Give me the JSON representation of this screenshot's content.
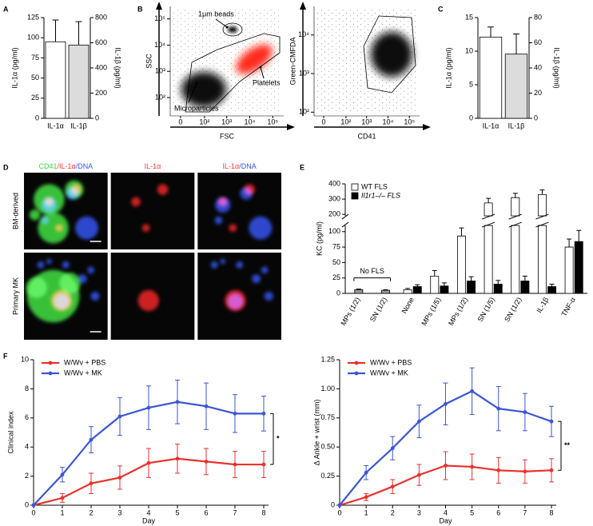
{
  "chart_data": [
    {
      "type": "bar",
      "panel": "A",
      "ylabel": "IL-1α (pg/ml)",
      "y2label": "IL-1β (pg/ml)",
      "categories": [
        "IL-1α",
        "IL-1β"
      ],
      "series": [
        {
          "color": "#ffffff",
          "values": [
            95,
            null
          ],
          "errors": [
            27,
            null
          ]
        },
        {
          "color": "#dcdcdc",
          "axis": "y2",
          "values": [
            null,
            582
          ],
          "errors": [
            null,
            186
          ]
        }
      ],
      "ylim": [
        0,
        125
      ],
      "yticks": [
        0,
        25,
        50,
        75,
        100,
        125
      ],
      "y2lim": [
        0,
        800
      ],
      "y2ticks": [
        0,
        200,
        400,
        600,
        800
      ]
    },
    {
      "type": "scatter",
      "panel": "B",
      "xlabel": "FSC",
      "ylabel": "SSC",
      "xscale": "symlog",
      "yscale": "log",
      "xlim": [
        -18,
        300000
      ],
      "ylim": [
        20,
        300000
      ],
      "xticks": [
        0,
        {
          "value": 100,
          "label": "10²"
        },
        {
          "value": 1000,
          "label": "10³"
        },
        {
          "value": 10000,
          "label": "10⁴"
        },
        {
          "value": 100000,
          "label": "10⁵"
        }
      ],
      "yticks": [
        {
          "value": 100,
          "label": "10²"
        },
        {
          "value": 1000,
          "label": "10³"
        },
        {
          "value": 10000,
          "label": "10⁴"
        },
        {
          "value": 100000,
          "label": "10⁵"
        }
      ],
      "annotations": [
        "1μm beads",
        "Platelets",
        "Microparticles"
      ]
    },
    {
      "type": "scatter",
      "xlabel": "CD41",
      "ylabel": "Green-CMFDA",
      "xscale": "symlog",
      "yscale": "log",
      "xlim": [
        -18,
        300000
      ],
      "ylim": [
        80,
        55000
      ],
      "xticks": [
        0,
        {
          "value": 100,
          "label": "10²"
        },
        {
          "value": 1000,
          "label": "10³"
        },
        {
          "value": 10000,
          "label": "10⁴"
        },
        {
          "value": 100000,
          "label": "10⁵"
        }
      ],
      "yticks": [
        {
          "value": 100,
          "label": "10²"
        },
        {
          "value": 1000,
          "label": "10³"
        },
        {
          "value": 10000,
          "label": "10⁴"
        }
      ]
    },
    {
      "type": "bar",
      "panel": "C",
      "ylabel": "IL-1α (pg/ml)",
      "y2label": "IL-1β (pg/ml)",
      "categories": [
        "IL-1α",
        "IL-1β"
      ],
      "series": [
        {
          "color": "#ffffff",
          "values": [
            12.1,
            null
          ],
          "errors": [
            1.5,
            null
          ]
        },
        {
          "color": "#dcdcdc",
          "axis": "y2",
          "values": [
            null,
            51
          ],
          "errors": [
            null,
            16
          ]
        }
      ],
      "ylim": [
        0,
        15
      ],
      "yticks": [
        0,
        5,
        10,
        15
      ],
      "y2lim": [
        0,
        80
      ],
      "y2ticks": [
        0,
        20,
        40,
        60,
        80
      ]
    },
    {
      "type": "image",
      "panel": "D",
      "column_titles": [
        [
          {
            "text": "CD41",
            "color": "#33dd33"
          },
          {
            "text": "/IL-1α",
            "color": "#ff3333"
          },
          {
            "text": "/DNA",
            "color": "#3355ff"
          }
        ],
        [
          {
            "text": "IL-1α",
            "color": "#ff3333"
          }
        ],
        [
          {
            "text": "IL-1α",
            "color": "#ff3333"
          },
          {
            "text": "/DNA",
            "color": "#3355ff"
          }
        ]
      ],
      "row_titles": [
        "BM-derived",
        "Primary MK"
      ]
    },
    {
      "type": "grouped_bar",
      "panel": "E",
      "ylabel": "KC (pg/ml)",
      "legend": "top-left",
      "categories": [
        "MPs (1/2)",
        "SN (1/2)",
        "None",
        "MPs (1/5)",
        "MPs (1/2)",
        "SN (1/5)",
        "SN (1/2)",
        "IL-1β",
        "TNF-α"
      ],
      "series": [
        {
          "name": "WT FLS",
          "color": "#ffffff",
          "values": [
            null,
            null,
            6,
            28,
            93,
            275,
            310,
            330,
            75
          ],
          "errors": [
            null,
            null,
            2,
            9,
            18,
            30,
            28,
            30,
            13
          ]
        },
        {
          "name": "Il1r1–/– FLS",
          "color": "#000000",
          "values": [
            null,
            null,
            11,
            12,
            20,
            15,
            20,
            11,
            84
          ],
          "errors": [
            null,
            null,
            3,
            5,
            7,
            6,
            8,
            4,
            18
          ]
        }
      ],
      "annotation": {
        "text": "No FLS",
        "color": "#999999",
        "values": [
          6,
          5,
          null,
          null,
          null,
          null,
          null,
          null,
          null
        ],
        "errors": [
          1,
          1,
          null,
          null,
          null,
          null,
          null,
          null,
          null
        ]
      },
      "ylim": [
        0,
        400
      ],
      "ybreak": [
        110,
        190
      ],
      "yticks": [
        0,
        25,
        50,
        75,
        100,
        200,
        300,
        400
      ]
    },
    {
      "type": "line",
      "panel": "F",
      "xlabel": "Day",
      "ylabel": "Clinical index",
      "legend": "top-left",
      "significance": "*",
      "x": [
        0,
        1,
        2,
        3,
        4,
        5,
        6,
        7,
        8
      ],
      "series": [
        {
          "name": "W/Wv + PBS",
          "color": "#e8322e",
          "values": [
            0,
            0.5,
            1.5,
            1.9,
            2.9,
            3.2,
            3.0,
            2.8,
            2.8
          ],
          "errors": [
            0,
            0.3,
            0.7,
            0.8,
            1.0,
            1.0,
            0.9,
            0.9,
            0.9
          ]
        },
        {
          "name": "W/Wv + MK",
          "color": "#3a56d4",
          "values": [
            0,
            2.1,
            4.5,
            6.1,
            6.7,
            7.1,
            6.8,
            6.3,
            6.3
          ],
          "errors": [
            0,
            0.5,
            0.9,
            1.3,
            1.5,
            1.5,
            1.6,
            1.3,
            1.2
          ]
        }
      ],
      "xlim": [
        0,
        8
      ],
      "xticks": [
        0,
        1,
        2,
        3,
        4,
        5,
        6,
        7,
        8
      ],
      "ylim": [
        0,
        10
      ],
      "yticks": [
        0,
        2,
        4,
        6,
        8,
        10
      ]
    },
    {
      "type": "line",
      "xlabel": "Day",
      "ylabel": "Δ Ankle + wrist (mm)",
      "legend": "top-left",
      "significance": "**",
      "x": [
        0,
        1,
        2,
        3,
        4,
        5,
        6,
        7,
        8
      ],
      "series": [
        {
          "name": "W/Wv + PBS",
          "color": "#e8322e",
          "values": [
            0,
            0.07,
            0.16,
            0.26,
            0.34,
            0.33,
            0.3,
            0.29,
            0.3
          ],
          "errors": [
            0,
            0.03,
            0.06,
            0.09,
            0.12,
            0.11,
            0.11,
            0.1,
            0.1
          ]
        },
        {
          "name": "W/Wv + MK",
          "color": "#3a56d4",
          "values": [
            0,
            0.28,
            0.49,
            0.72,
            0.87,
            0.98,
            0.83,
            0.8,
            0.72
          ],
          "errors": [
            0,
            0.06,
            0.1,
            0.14,
            0.18,
            0.2,
            0.19,
            0.16,
            0.13
          ]
        }
      ],
      "xlim": [
        0,
        8
      ],
      "xticks": [
        0,
        1,
        2,
        3,
        4,
        5,
        6,
        7,
        8
      ],
      "ylim": [
        0,
        1.25
      ],
      "yticks": [
        0,
        0.25,
        {
          "value": 0.5,
          "label": "0.50"
        },
        0.75,
        {
          "value": 1,
          "label": "1.00"
        },
        1.25
      ]
    }
  ]
}
